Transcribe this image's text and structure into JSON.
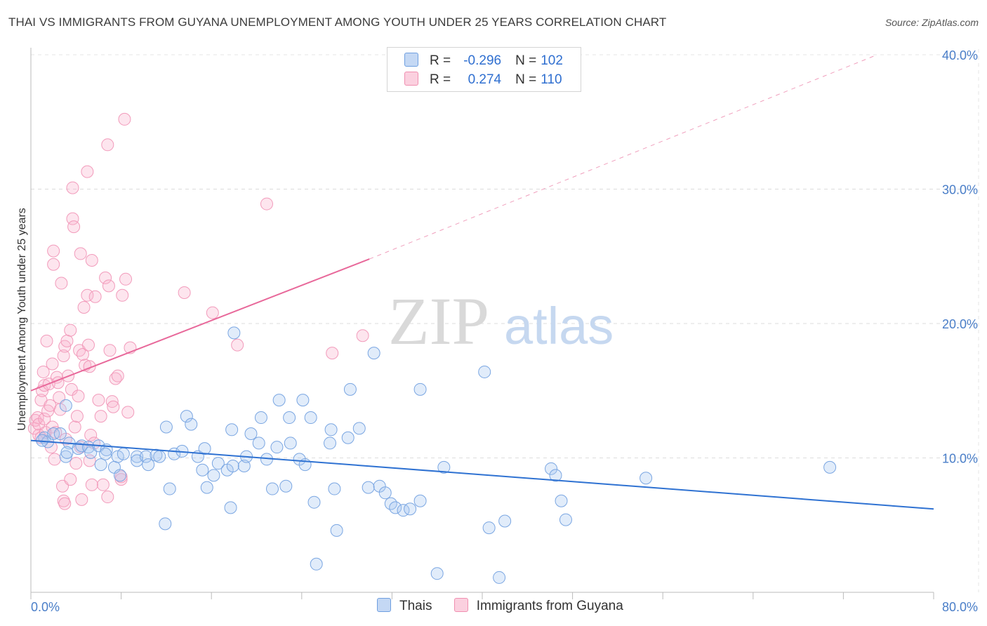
{
  "title": "THAI VS IMMIGRANTS FROM GUYANA UNEMPLOYMENT AMONG YOUTH UNDER 25 YEARS CORRELATION CHART",
  "source": "Source: ZipAtlas.com",
  "watermark": {
    "zip": "ZIP",
    "atlas": "atlas"
  },
  "legend": {
    "rows": [
      {
        "r_label": "R =",
        "r_value": "-0.296",
        "n_label": "N =",
        "n_value": "102"
      },
      {
        "r_label": "R =",
        "r_value": "0.274",
        "n_label": "N =",
        "n_value": "110"
      }
    ]
  },
  "chart_data": {
    "type": "scatter",
    "title": "THAI VS IMMIGRANTS FROM GUYANA UNEMPLOYMENT AMONG YOUTH UNDER 25 YEARS CORRELATION CHART",
    "xlabel": "",
    "ylabel": "Unemployment Among Youth under 25 years",
    "xlim": [
      0,
      80
    ],
    "ylim": [
      0,
      40
    ],
    "x_tick_labels": [
      "0.0%",
      "80.0%"
    ],
    "y_ticks": [
      10,
      20,
      30,
      40
    ],
    "y_tick_labels": [
      "10.0%",
      "20.0%",
      "30.0%",
      "40.0%"
    ],
    "grid": true,
    "legend_position": "top-center",
    "colors": {
      "thais": "#6f9fe0",
      "guyana": "#f08fb0",
      "thais_line": "#2f72d2",
      "guyana_line": "#e8689a"
    },
    "series": [
      {
        "name": "Thais",
        "trend": {
          "x": [
            0,
            80
          ],
          "y": [
            11.3,
            6.2
          ],
          "style": "solid"
        },
        "points": [
          [
            1.2,
            11.5
          ],
          [
            1.5,
            11.2
          ],
          [
            2.0,
            11.8
          ],
          [
            1.0,
            11.3
          ],
          [
            2.6,
            11.8
          ],
          [
            3.1,
            10.1
          ],
          [
            3.4,
            11.1
          ],
          [
            3.1,
            13.9
          ],
          [
            3.2,
            10.4
          ],
          [
            4.2,
            10.7
          ],
          [
            4.5,
            10.9
          ],
          [
            5.1,
            10.8
          ],
          [
            5.3,
            10.4
          ],
          [
            6.0,
            10.9
          ],
          [
            6.2,
            9.5
          ],
          [
            6.7,
            10.6
          ],
          [
            6.6,
            10.3
          ],
          [
            7.4,
            9.3
          ],
          [
            7.7,
            10.1
          ],
          [
            7.9,
            8.7
          ],
          [
            8.2,
            10.3
          ],
          [
            9.4,
            10.1
          ],
          [
            9.4,
            9.8
          ],
          [
            10.2,
            10.1
          ],
          [
            10.4,
            9.5
          ],
          [
            11.1,
            10.2
          ],
          [
            11.4,
            10.1
          ],
          [
            12.0,
            12.3
          ],
          [
            12.3,
            7.7
          ],
          [
            12.7,
            10.3
          ],
          [
            13.4,
            10.5
          ],
          [
            13.8,
            13.1
          ],
          [
            14.2,
            12.5
          ],
          [
            14.8,
            10.1
          ],
          [
            15.2,
            9.1
          ],
          [
            15.4,
            10.7
          ],
          [
            15.6,
            7.8
          ],
          [
            16.2,
            8.7
          ],
          [
            16.6,
            9.6
          ],
          [
            17.4,
            9.1
          ],
          [
            17.7,
            6.3
          ],
          [
            17.8,
            12.1
          ],
          [
            17.9,
            9.4
          ],
          [
            18.0,
            19.3
          ],
          [
            18.9,
            9.4
          ],
          [
            19.1,
            10.1
          ],
          [
            19.5,
            11.8
          ],
          [
            20.2,
            11.1
          ],
          [
            20.4,
            13.0
          ],
          [
            20.9,
            9.9
          ],
          [
            21.4,
            7.7
          ],
          [
            21.8,
            10.8
          ],
          [
            22.0,
            14.3
          ],
          [
            22.6,
            7.9
          ],
          [
            22.9,
            13.0
          ],
          [
            23.0,
            11.1
          ],
          [
            23.8,
            9.9
          ],
          [
            24.1,
            14.3
          ],
          [
            24.3,
            9.5
          ],
          [
            24.8,
            13.0
          ],
          [
            25.1,
            6.7
          ],
          [
            26.5,
            11.1
          ],
          [
            26.6,
            12.1
          ],
          [
            26.9,
            7.7
          ],
          [
            27.1,
            4.6
          ],
          [
            28.1,
            11.5
          ],
          [
            28.3,
            15.1
          ],
          [
            29.1,
            12.2
          ],
          [
            29.9,
            7.8
          ],
          [
            30.9,
            7.9
          ],
          [
            30.4,
            17.8
          ],
          [
            31.4,
            7.4
          ],
          [
            31.9,
            6.6
          ],
          [
            32.3,
            6.3
          ],
          [
            33.0,
            6.1
          ],
          [
            33.6,
            6.2
          ],
          [
            34.5,
            6.8
          ],
          [
            34.5,
            15.1
          ],
          [
            36.6,
            9.3
          ],
          [
            36.0,
            1.4
          ],
          [
            40.2,
            16.4
          ],
          [
            40.6,
            4.8
          ],
          [
            41.5,
            1.1
          ],
          [
            42.0,
            5.3
          ],
          [
            46.1,
            9.2
          ],
          [
            46.5,
            8.7
          ],
          [
            47.0,
            6.8
          ],
          [
            47.4,
            5.4
          ],
          [
            54.5,
            8.5
          ],
          [
            70.8,
            9.3
          ],
          [
            11.9,
            5.1
          ],
          [
            25.3,
            2.1
          ]
        ]
      },
      {
        "name": "Immigrants from Guyana",
        "trend": {
          "x": [
            0,
            30
          ],
          "y": [
            15.0,
            24.8
          ],
          "style": "solid",
          "extended": {
            "x": [
              30,
              75
            ],
            "y": [
              24.8,
              40.0
            ],
            "style": "dashed"
          }
        },
        "points": [
          [
            0.3,
            12.2
          ],
          [
            0.4,
            12.8
          ],
          [
            0.6,
            13.0
          ],
          [
            0.7,
            12.5
          ],
          [
            0.7,
            11.7
          ],
          [
            0.9,
            14.3
          ],
          [
            0.9,
            11.5
          ],
          [
            1.0,
            15.0
          ],
          [
            1.1,
            16.4
          ],
          [
            1.2,
            15.4
          ],
          [
            1.2,
            12.9
          ],
          [
            1.3,
            11.9
          ],
          [
            1.4,
            18.7
          ],
          [
            1.5,
            13.5
          ],
          [
            1.6,
            15.5
          ],
          [
            1.7,
            13.9
          ],
          [
            1.8,
            10.8
          ],
          [
            1.9,
            17.0
          ],
          [
            1.9,
            12.3
          ],
          [
            2.0,
            24.4
          ],
          [
            2.0,
            25.4
          ],
          [
            2.1,
            9.9
          ],
          [
            2.2,
            11.9
          ],
          [
            2.3,
            16.0
          ],
          [
            2.4,
            15.6
          ],
          [
            2.5,
            14.5
          ],
          [
            2.6,
            13.6
          ],
          [
            2.7,
            23.0
          ],
          [
            2.9,
            17.6
          ],
          [
            3.0,
            18.3
          ],
          [
            3.1,
            11.4
          ],
          [
            3.2,
            18.7
          ],
          [
            3.3,
            16.1
          ],
          [
            3.5,
            19.5
          ],
          [
            3.6,
            15.1
          ],
          [
            3.7,
            27.8
          ],
          [
            3.8,
            27.2
          ],
          [
            3.9,
            12.3
          ],
          [
            4.0,
            9.6
          ],
          [
            4.1,
            13.1
          ],
          [
            4.2,
            14.6
          ],
          [
            4.3,
            18.0
          ],
          [
            4.4,
            25.2
          ],
          [
            4.6,
            17.7
          ],
          [
            4.7,
            21.2
          ],
          [
            4.8,
            16.9
          ],
          [
            5.0,
            22.1
          ],
          [
            5.1,
            18.4
          ],
          [
            5.2,
            16.8
          ],
          [
            5.3,
            11.7
          ],
          [
            5.4,
            24.7
          ],
          [
            5.6,
            11.1
          ],
          [
            5.7,
            22.0
          ],
          [
            6.0,
            14.3
          ],
          [
            6.2,
            13.1
          ],
          [
            6.4,
            8.0
          ],
          [
            6.6,
            23.4
          ],
          [
            6.9,
            22.8
          ],
          [
            7.0,
            18.0
          ],
          [
            7.2,
            14.2
          ],
          [
            7.3,
            13.8
          ],
          [
            7.5,
            15.9
          ],
          [
            7.7,
            16.1
          ],
          [
            8.0,
            8.4
          ],
          [
            8.1,
            22.1
          ],
          [
            8.4,
            23.3
          ],
          [
            8.6,
            13.4
          ],
          [
            8.8,
            18.2
          ],
          [
            3.7,
            30.1
          ],
          [
            5.0,
            31.3
          ],
          [
            6.8,
            33.3
          ],
          [
            8.3,
            35.2
          ],
          [
            13.6,
            22.3
          ],
          [
            16.1,
            20.8
          ],
          [
            18.3,
            18.4
          ],
          [
            20.9,
            28.9
          ],
          [
            26.7,
            17.8
          ],
          [
            29.4,
            19.1
          ],
          [
            2.9,
            6.8
          ],
          [
            4.5,
            6.9
          ],
          [
            5.4,
            8.0
          ],
          [
            2.8,
            7.9
          ],
          [
            3.0,
            6.6
          ],
          [
            5.2,
            9.8
          ],
          [
            8.0,
            8.6
          ],
          [
            6.8,
            7.1
          ],
          [
            3.5,
            8.4
          ],
          [
            4.4,
            10.8
          ]
        ]
      }
    ]
  },
  "bottom_legend": [
    {
      "label": "Thais"
    },
    {
      "label": "Immigrants from Guyana"
    }
  ]
}
